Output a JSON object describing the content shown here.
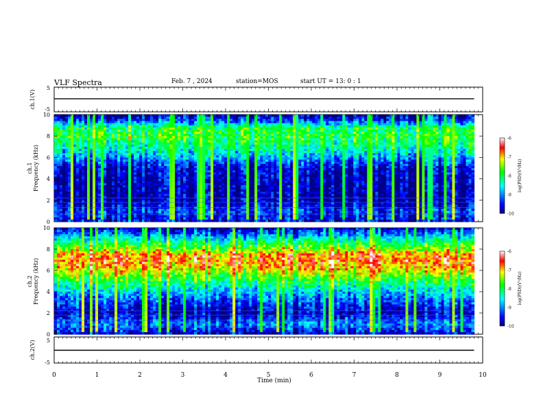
{
  "header": {
    "title": "VLF Spectra",
    "date": "Feb. 7 , 2024",
    "station": "station=MOS",
    "start": "start UT =  13: 0  : 1"
  },
  "chart_data": [
    {
      "type": "line",
      "id": "ch1-amplitude",
      "ylabel": "ch.1(V)",
      "ylim": [
        -5,
        5
      ],
      "yticks": [
        "5",
        "-5"
      ],
      "xlim": [
        0,
        10
      ],
      "series": [
        {
          "x": [
            0,
            9.8
          ],
          "y": [
            0.3,
            0.3
          ]
        }
      ],
      "color": "#000000"
    },
    {
      "type": "heatmap",
      "id": "ch1-spectrogram",
      "ylabel": "ch.1\nFrequency (kHz)",
      "ylim": [
        0,
        10
      ],
      "yticks": [
        "0",
        "2",
        "4",
        "6",
        "8",
        "10"
      ],
      "xlim": [
        0,
        10
      ],
      "data_end_min": 9.8,
      "colorbar": {
        "label": "log(PSD)(V²/Hz)",
        "range": [
          -10,
          -6
        ],
        "ticks": [
          "-6",
          "-7",
          "-8",
          "-9",
          "-10"
        ]
      },
      "profile_khz": [
        0,
        1,
        2,
        3,
        4,
        5,
        5.5,
        6,
        7,
        8,
        8.8,
        9.4,
        10
      ],
      "profile_log_psd": [
        -9.6,
        -9.4,
        -9.9,
        -9.85,
        -9.8,
        -9.7,
        -9.3,
        -8.9,
        -8.3,
        -7.9,
        -8.1,
        -9.3,
        -9.9
      ]
    },
    {
      "type": "heatmap",
      "id": "ch2-spectrogram",
      "ylabel": "ch.2\nFrequency (kHz)",
      "ylim": [
        0,
        10
      ],
      "yticks": [
        "0",
        "2",
        "4",
        "6",
        "8",
        "10"
      ],
      "xlim": [
        0,
        10
      ],
      "data_end_min": 9.8,
      "colorbar": {
        "label": "log(PSD)(V²/Hz)",
        "range": [
          -10,
          -6
        ],
        "ticks": [
          "-6",
          "-7",
          "-8",
          "-9",
          "-10"
        ]
      },
      "profile_khz": [
        0,
        1,
        2,
        3,
        4,
        5,
        6,
        6.5,
        7,
        7.5,
        8,
        9,
        9.5,
        10
      ],
      "profile_log_psd": [
        -9.7,
        -9.0,
        -9.8,
        -9.3,
        -8.7,
        -8.0,
        -7.2,
        -6.9,
        -6.8,
        -6.9,
        -7.5,
        -8.5,
        -9.2,
        -9.8
      ]
    },
    {
      "type": "line",
      "id": "ch2-amplitude",
      "ylabel": "ch.2(V)",
      "ylim": [
        -5,
        5
      ],
      "yticks": [
        "5",
        "-5"
      ],
      "xlim": [
        0,
        10
      ],
      "series": [
        {
          "x": [
            0,
            9.8
          ],
          "y": [
            -0.1,
            -0.1
          ]
        }
      ],
      "color": "#000000"
    }
  ],
  "xaxis": {
    "label": "Time (min)",
    "ticks": [
      "0",
      "1",
      "2",
      "3",
      "4",
      "5",
      "6",
      "7",
      "8",
      "9",
      "10"
    ],
    "range": [
      0,
      10
    ]
  }
}
